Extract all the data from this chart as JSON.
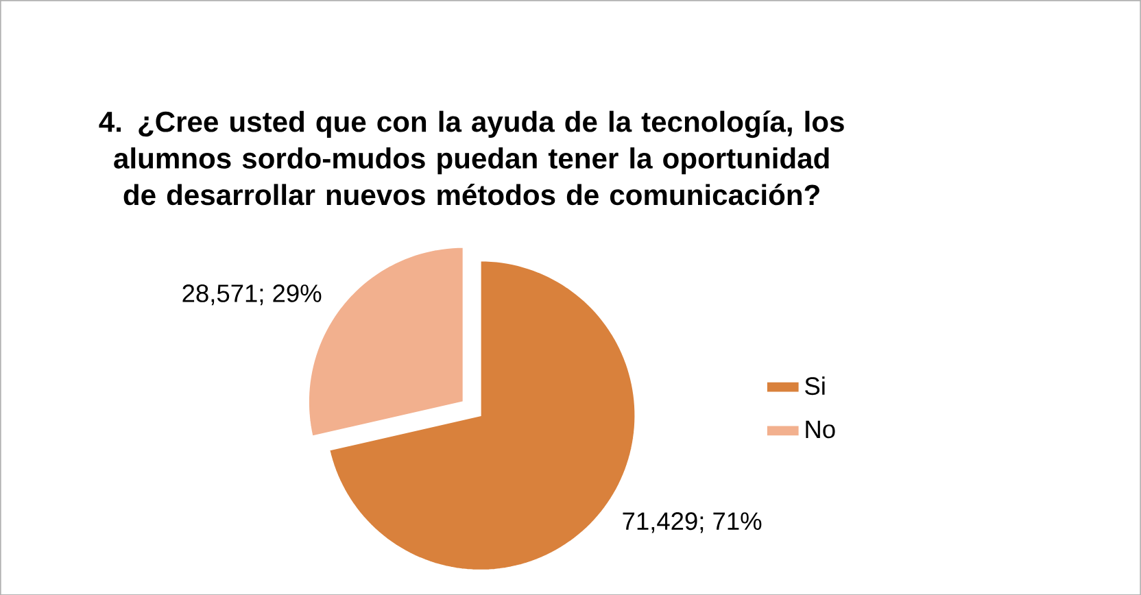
{
  "chart_data": {
    "type": "pie",
    "title": "4. ¿Cree usted que con la ayuda de la tecnología, los alumnos sordo-mudos puedan tener la oportunidad de desarrollar nuevos métodos de comunicación?",
    "categories": [
      "Si",
      "No"
    ],
    "values": [
      71.429,
      28.571
    ],
    "colors": [
      "#d9813c",
      "#f2b08e"
    ],
    "value_labels": [
      "71,429; 71%",
      "28,571; 29%"
    ],
    "legend": "right"
  }
}
